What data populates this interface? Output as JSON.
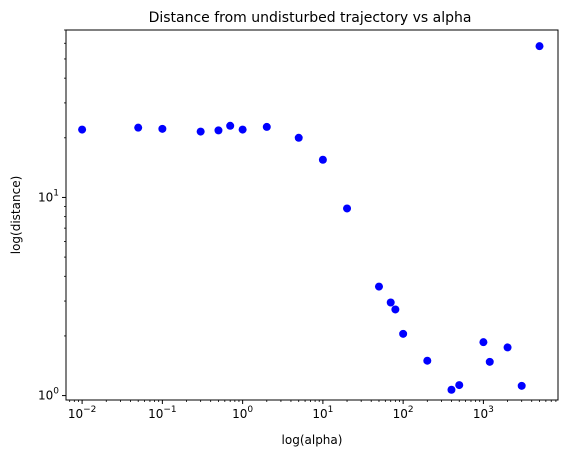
{
  "chart_data": {
    "type": "scatter",
    "title": "Distance from undisturbed trajectory vs alpha",
    "xlabel": "log(alpha)",
    "ylabel": "log(distance)",
    "xscale": "log",
    "yscale": "log",
    "xlim": [
      0.0063,
      8500
    ],
    "ylim": [
      0.95,
      70
    ],
    "grid": false,
    "marker_color": "#0000ff",
    "x_ticks": [
      {
        "value": 0.01,
        "base": "10",
        "exp": "−2"
      },
      {
        "value": 0.1,
        "base": "10",
        "exp": "−1"
      },
      {
        "value": 1,
        "base": "10",
        "exp": "0"
      },
      {
        "value": 10,
        "base": "10",
        "exp": "1"
      },
      {
        "value": 100,
        "base": "10",
        "exp": "2"
      },
      {
        "value": 1000,
        "base": "10",
        "exp": "3"
      }
    ],
    "y_ticks": [
      {
        "value": 1,
        "base": "10",
        "exp": "0"
      },
      {
        "value": 10,
        "base": "10",
        "exp": "1"
      }
    ],
    "x": [
      0.01,
      0.05,
      0.1,
      0.3,
      0.5,
      0.7,
      1,
      2,
      5,
      10,
      20,
      50,
      70,
      80,
      100,
      200,
      400,
      500,
      1000,
      1200,
      2000,
      3000,
      5000
    ],
    "y": [
      22.0,
      22.5,
      22.2,
      21.5,
      21.8,
      23.0,
      22.0,
      22.7,
      20.0,
      15.5,
      8.8,
      3.55,
      2.95,
      2.72,
      2.05,
      1.5,
      1.07,
      1.13,
      1.86,
      1.48,
      1.75,
      1.12,
      58.0
    ]
  }
}
